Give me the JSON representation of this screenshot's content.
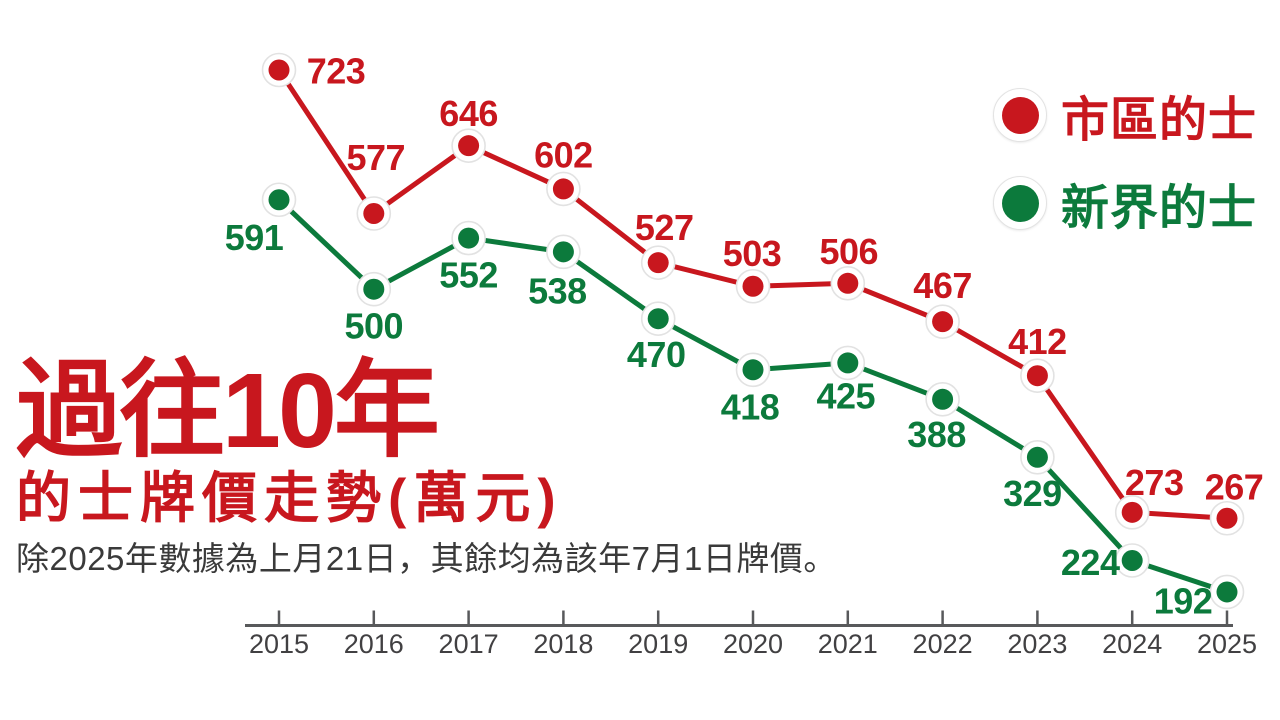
{
  "page": {
    "background": "#ffffff"
  },
  "title": {
    "line1": "過往10年",
    "line2": "的士牌價走勢(萬元)",
    "note": "除2025年數據為上月21日，其餘均為該年7月1日牌價。",
    "color": "#c8171e",
    "note_color": "#3a3a3a"
  },
  "chart_data": {
    "type": "line",
    "title": "過往10年的士牌價走勢(萬元)",
    "x": [
      "2015",
      "2016",
      "2017",
      "2018",
      "2019",
      "2020",
      "2021",
      "2022",
      "2023",
      "2024",
      "2025"
    ],
    "xlabel": "",
    "ylabel": "",
    "unit": "萬元",
    "grid": false,
    "legend_position": "top-right",
    "y_range_hint": [
      150,
      760
    ],
    "axis_color": "#58595b",
    "tick_label_color": "#414042",
    "series": [
      {
        "name": "市區的士",
        "color": "#c8171e",
        "values": [
          723,
          577,
          646,
          602,
          527,
          503,
          506,
          467,
          412,
          273,
          267
        ],
        "label_offsets": [
          [
            57,
            1
          ],
          [
            2,
            -56
          ],
          [
            0,
            -32
          ],
          [
            0,
            -34
          ],
          [
            6,
            -35
          ],
          [
            -1,
            -33
          ],
          [
            1,
            -32
          ],
          [
            0,
            -36
          ],
          [
            0,
            -34
          ],
          [
            22,
            -30
          ],
          [
            7,
            -31
          ]
        ]
      },
      {
        "name": "新界的士",
        "color": "#0c7a3c",
        "values": [
          591,
          500,
          552,
          538,
          470,
          418,
          425,
          388,
          329,
          224,
          192
        ],
        "label_offsets": [
          [
            -25,
            38
          ],
          [
            0,
            37
          ],
          [
            0,
            37
          ],
          [
            -6,
            39
          ],
          [
            -2,
            36
          ],
          [
            -3,
            37
          ],
          [
            -2,
            33
          ],
          [
            -6,
            35
          ],
          [
            -5,
            36
          ],
          [
            -42,
            2
          ],
          [
            -44,
            9
          ]
        ]
      }
    ]
  }
}
